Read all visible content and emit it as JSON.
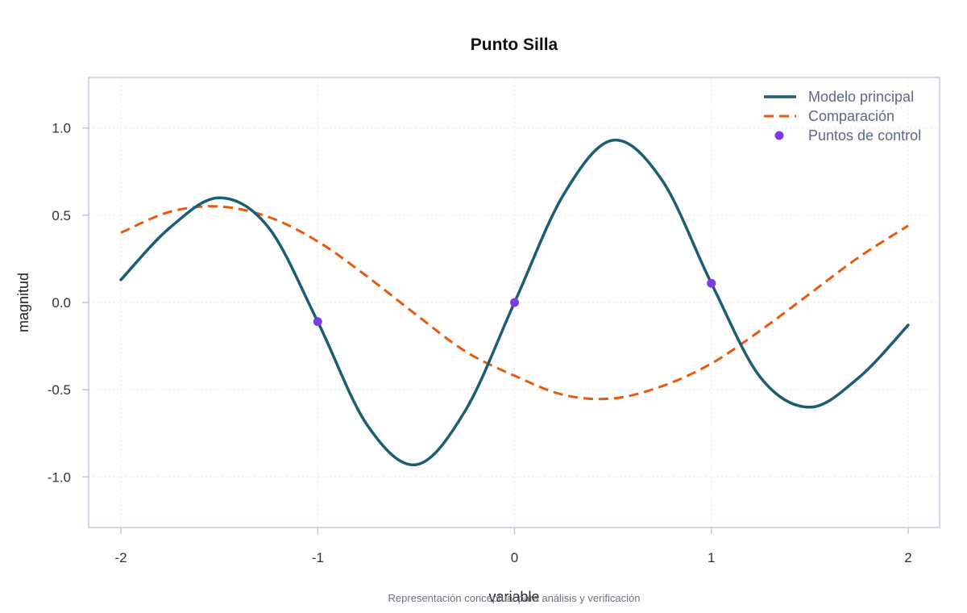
{
  "chart_data": {
    "type": "line",
    "title": "Punto Silla",
    "xlabel": "variable",
    "ylabel": "magnitud",
    "caption": "Representación conceptual para análisis y verificación",
    "xlim": [
      -2.0,
      2.0
    ],
    "ylim": [
      -1.29,
      1.29
    ],
    "x_ticks": [
      -2,
      -1,
      0,
      1,
      2
    ],
    "x_tick_labels": [
      "-2",
      "-1",
      "0",
      "1",
      "2"
    ],
    "y_ticks": [
      -1.0,
      -0.5,
      0.0,
      0.5,
      1.0
    ],
    "y_tick_labels": [
      "-1.0",
      "-0.5",
      "0.0",
      "0.5",
      "1.0"
    ],
    "grid": true,
    "legend_position": "top-right",
    "series": [
      {
        "name": "Modelo principal",
        "kind": "line",
        "color": "#1b5e73",
        "x": [
          -2.0,
          -1.75,
          -1.5,
          -1.25,
          -1.0,
          -0.75,
          -0.5,
          -0.25,
          0.0,
          0.25,
          0.5,
          0.75,
          1.0,
          1.25,
          1.5,
          1.75,
          2.0
        ],
        "y": [
          0.13,
          0.43,
          0.6,
          0.43,
          -0.11,
          -0.7,
          -0.93,
          -0.62,
          0.0,
          0.62,
          0.93,
          0.7,
          0.11,
          -0.43,
          -0.6,
          -0.43,
          -0.13
        ]
      },
      {
        "name": "Comparación",
        "kind": "dashed-line",
        "color": "#e8590c",
        "x": [
          -2.0,
          -1.75,
          -1.5,
          -1.25,
          -1.0,
          -0.75,
          -0.5,
          -0.25,
          0.0,
          0.25,
          0.5,
          0.75,
          1.0,
          1.25,
          1.5,
          1.75,
          2.0
        ],
        "y": [
          0.4,
          0.52,
          0.55,
          0.49,
          0.35,
          0.15,
          -0.07,
          -0.28,
          -0.42,
          -0.53,
          -0.55,
          -0.48,
          -0.35,
          -0.16,
          0.05,
          0.26,
          0.44
        ]
      },
      {
        "name": "Puntos de control",
        "kind": "points",
        "color": "#7c3aed",
        "x": [
          -1,
          0,
          1
        ],
        "y": [
          -0.11,
          0.0,
          0.11
        ]
      }
    ]
  }
}
